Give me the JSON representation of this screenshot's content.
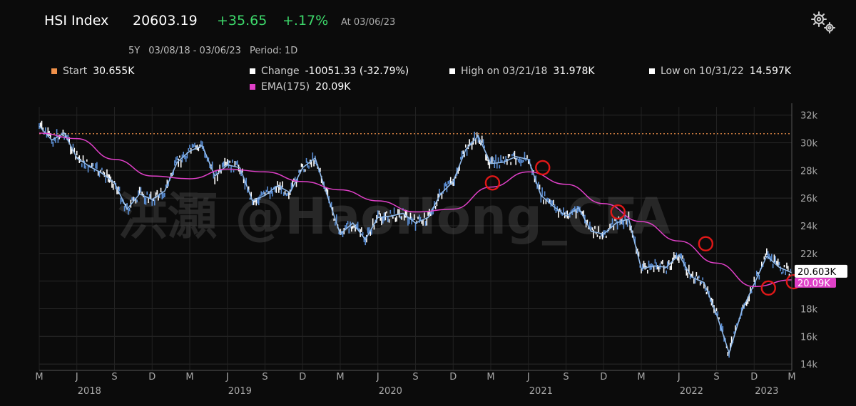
{
  "header": {
    "symbol": "HSI Index",
    "last": "20603.19",
    "change": "+35.65",
    "change_pct": "+.17%",
    "as_of": "At 03/06/23",
    "period_length": "5Y",
    "date_range": "03/08/18 - 03/06/23",
    "period": "Period: 1D",
    "settings_icon": "gear-icon"
  },
  "legend": {
    "start_label": "Start",
    "start_value": "30.655K",
    "start_color": "#f0914a",
    "change_label": "Change",
    "change_value": "-10051.33 (-32.79%)",
    "high_label": "High on 03/21/18",
    "high_value": "31.978K",
    "low_label": "Low on 10/31/22",
    "low_value": "14.597K",
    "ema_label": "EMA(175)",
    "ema_value": "20.09K",
    "ema_color": "#e040c8"
  },
  "watermark": "洪灝 @HaoHong_CFA",
  "chart_data": {
    "type": "line",
    "start_reference": 30655,
    "ylim": [
      13800,
      32600
    ],
    "y_ticks": [
      14000,
      16000,
      18000,
      20000,
      22000,
      24000,
      26000,
      28000,
      30000,
      32000
    ],
    "y_tick_labels": [
      "14k",
      "16k",
      "18k",
      "20k",
      "22k",
      "24k",
      "26k",
      "28k",
      "30k",
      "32k"
    ],
    "x_month_labels": [
      "M",
      "J",
      "S",
      "D",
      "M",
      "J",
      "S",
      "D",
      "M",
      "J",
      "S",
      "D",
      "M",
      "J",
      "S",
      "D",
      "M",
      "J",
      "S",
      "D",
      "M"
    ],
    "x_year_labels": [
      "2018",
      "2019",
      "2020",
      "2021",
      "2022",
      "2023"
    ],
    "last_price_label": "20.603K",
    "ema_price_label": "20.09K",
    "series": [
      {
        "name": "HSI Index",
        "color": "#8fb8e8",
        "x": [
          "2018-03",
          "2018-04",
          "2018-05",
          "2018-06",
          "2018-07",
          "2018-08",
          "2018-09",
          "2018-10",
          "2018-11",
          "2018-12",
          "2019-01",
          "2019-02",
          "2019-03",
          "2019-04",
          "2019-05",
          "2019-06",
          "2019-07",
          "2019-08",
          "2019-09",
          "2019-10",
          "2019-11",
          "2019-12",
          "2020-01",
          "2020-02",
          "2020-03",
          "2020-04",
          "2020-05",
          "2020-06",
          "2020-07",
          "2020-08",
          "2020-09",
          "2020-10",
          "2020-11",
          "2020-12",
          "2021-01",
          "2021-02",
          "2021-03",
          "2021-04",
          "2021-05",
          "2021-06",
          "2021-07",
          "2021-08",
          "2021-09",
          "2021-10",
          "2021-11",
          "2021-12",
          "2022-01",
          "2022-02",
          "2022-03",
          "2022-04",
          "2022-05",
          "2022-06",
          "2022-07",
          "2022-08",
          "2022-09",
          "2022-10",
          "2022-11",
          "2022-12",
          "2023-01",
          "2023-02",
          "2023-03"
        ],
        "values": [
          31200,
          30200,
          30700,
          28900,
          28300,
          27800,
          27100,
          25200,
          26300,
          25900,
          26500,
          28600,
          29400,
          29800,
          27600,
          28400,
          28200,
          25800,
          26200,
          26900,
          26400,
          28200,
          28900,
          26100,
          23400,
          24200,
          23000,
          24600,
          24700,
          24900,
          24200,
          24600,
          26300,
          27200,
          29500,
          30500,
          28500,
          28600,
          29000,
          28800,
          26200,
          25400,
          24700,
          25300,
          23600,
          23400,
          24200,
          24500,
          20900,
          21100,
          21000,
          21900,
          20300,
          19900,
          17600,
          14800,
          17800,
          19800,
          21800,
          21000,
          20603
        ]
      },
      {
        "name": "EMA(175)",
        "color": "#e040c8",
        "x": [
          "2018-03",
          "2018-06",
          "2018-09",
          "2018-12",
          "2019-03",
          "2019-06",
          "2019-09",
          "2019-12",
          "2020-03",
          "2020-06",
          "2020-09",
          "2020-12",
          "2021-03",
          "2021-06",
          "2021-09",
          "2021-12",
          "2022-03",
          "2022-06",
          "2022-09",
          "2022-12",
          "2023-03"
        ],
        "values": [
          30700,
          30300,
          28800,
          27600,
          27400,
          28100,
          27900,
          27200,
          26600,
          25800,
          25000,
          25200,
          26800,
          27900,
          27000,
          25600,
          24300,
          22900,
          21300,
          19600,
          20090
        ]
      }
    ]
  }
}
